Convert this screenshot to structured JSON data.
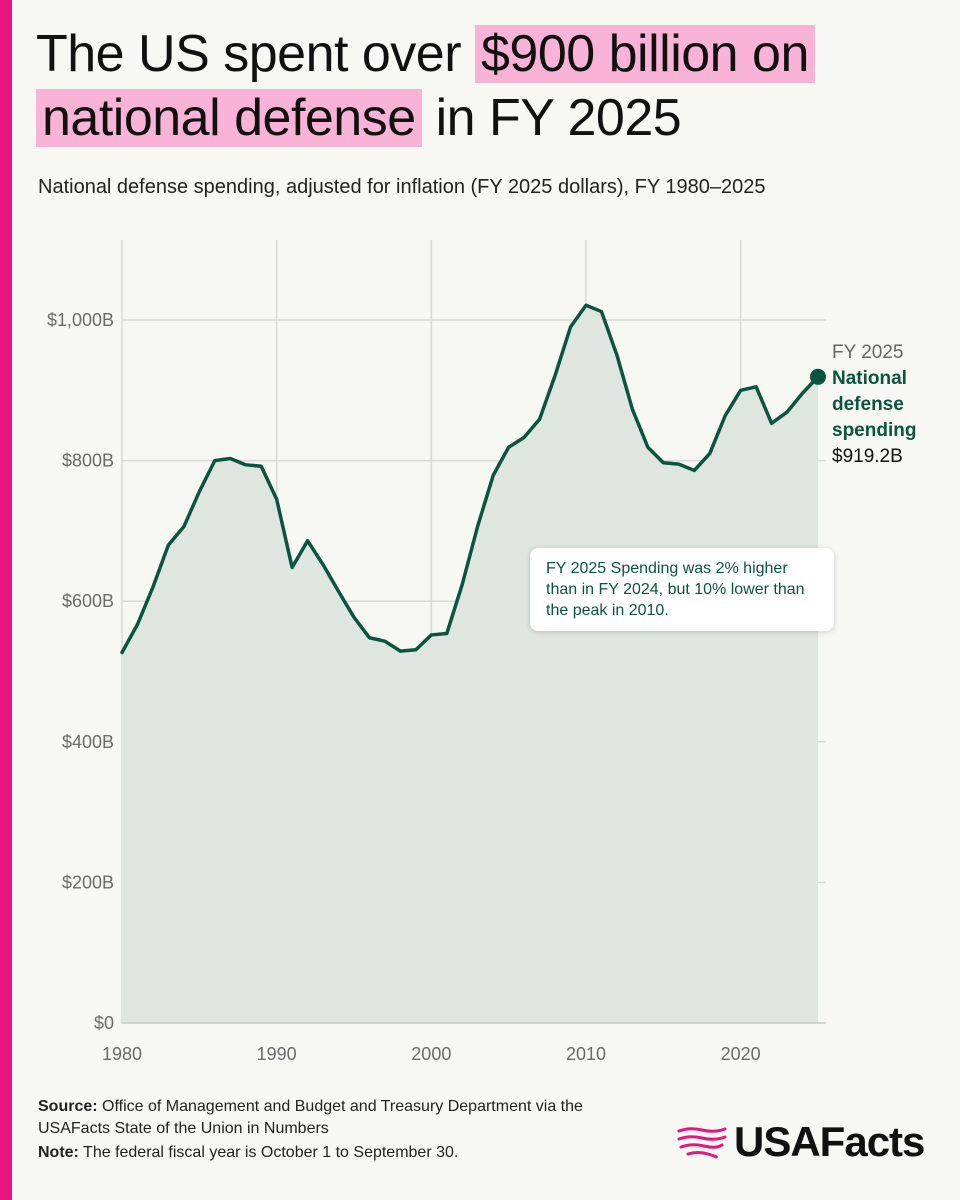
{
  "title": {
    "pre": "The US spent over ",
    "highlight1": "$900 billion on",
    "highlight2": "national defense",
    "post": " in FY 2025"
  },
  "subtitle": "National defense spending, adjusted for inflation (FY 2025 dollars), FY 1980–2025",
  "chart_data": {
    "type": "area",
    "title": "The US spent over $900 billion on national defense in FY 2025",
    "subtitle": "National defense spending, adjusted for inflation (FY 2025 dollars), FY 1980–2025",
    "xlabel": "",
    "ylabel": "",
    "xlim": [
      1980,
      2025
    ],
    "ylim": [
      0,
      1100
    ],
    "x_ticks": [
      1980,
      1990,
      2000,
      2010,
      2020
    ],
    "x_tick_labels": [
      "1980",
      "1990",
      "2000",
      "2010",
      "2020"
    ],
    "y_ticks": [
      0,
      200,
      400,
      600,
      800,
      1000
    ],
    "y_tick_labels": [
      "$0",
      "$200B",
      "$400B",
      "$600B",
      "$800B",
      "$1,000B"
    ],
    "grid": true,
    "series": [
      {
        "name": "National defense spending",
        "color": "#0b5440",
        "fill": "#dfe6e1",
        "x": [
          1980,
          1981,
          1982,
          1983,
          1984,
          1985,
          1986,
          1987,
          1988,
          1989,
          1990,
          1991,
          1992,
          1993,
          1994,
          1995,
          1996,
          1997,
          1998,
          1999,
          2000,
          2001,
          2002,
          2003,
          2004,
          2005,
          2006,
          2007,
          2008,
          2009,
          2010,
          2011,
          2012,
          2013,
          2014,
          2015,
          2016,
          2017,
          2018,
          2019,
          2020,
          2021,
          2022,
          2023,
          2024,
          2025
        ],
        "values": [
          527,
          567,
          620,
          680,
          706,
          756,
          800,
          803,
          794,
          792,
          745,
          648,
          686,
          652,
          614,
          577,
          548,
          543,
          529,
          531,
          552,
          554,
          624,
          707,
          779,
          819,
          833,
          859,
          921,
          990,
          1021,
          1012,
          950,
          873,
          819,
          797,
          795,
          786,
          810,
          864,
          900,
          905,
          853,
          869,
          896,
          919.2
        ]
      }
    ],
    "end_label": {
      "year": "FY 2025",
      "series": "National defense spending",
      "value": "$919.2B"
    },
    "annotation": "FY 2025 Spending was 2% higher than in FY 2024, but 10% lower than the peak in 2010."
  },
  "end_label_lines": [
    "National",
    "defense",
    "spending"
  ],
  "footer": {
    "source_label": "Source:",
    "source_text": "Office of Management and Budget and Treasury Department via the USAFacts State of the Union in Numbers",
    "note_label": "Note:",
    "note_text": "The federal fiscal year is October 1 to September 30."
  },
  "logo": {
    "text": "USAFacts",
    "icon": "us-map-icon",
    "color": "#e6157f"
  },
  "colors": {
    "accent": "#e6157f",
    "highlight": "#f9b3d6",
    "series": "#0b5440"
  }
}
